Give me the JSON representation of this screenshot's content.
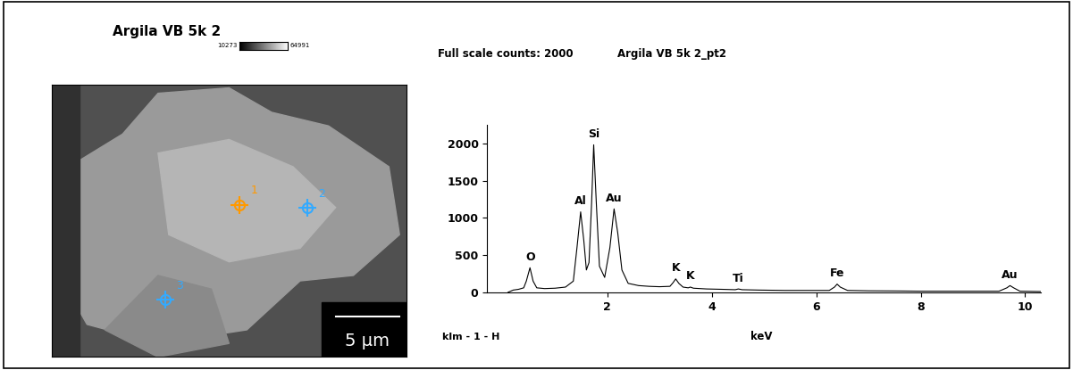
{
  "title": "Argila VB 5k 2",
  "image": {
    "colorbar": {
      "min": 10273,
      "max": 64991
    },
    "scale_bar": "5 µm",
    "markers": [
      {
        "label": "1",
        "color": "#ff9900"
      },
      {
        "label": "2",
        "color": "#33aaff"
      },
      {
        "label": "3",
        "color": "#33aaff"
      }
    ]
  },
  "chart_data": {
    "type": "line",
    "title": "Argila VB 5k 2_pt2",
    "subtitle": "Full scale counts: 2000",
    "annotation": "klm - 1 - H",
    "x_label": "keV",
    "color": "#000000",
    "x": [
      0.1,
      0.2,
      0.3,
      0.4,
      0.45,
      0.52,
      0.58,
      0.65,
      0.8,
      1.0,
      1.2,
      1.35,
      1.42,
      1.49,
      1.55,
      1.6,
      1.65,
      1.7,
      1.74,
      1.79,
      1.85,
      1.95,
      2.05,
      2.13,
      2.2,
      2.28,
      2.4,
      2.6,
      2.8,
      3.0,
      3.2,
      3.26,
      3.31,
      3.37,
      3.45,
      3.55,
      3.59,
      3.65,
      3.9,
      4.2,
      4.45,
      4.51,
      4.58,
      4.9,
      5.4,
      5.9,
      6.25,
      6.35,
      6.4,
      6.46,
      6.6,
      7.0,
      7.5,
      8.0,
      8.5,
      9.0,
      9.5,
      9.65,
      9.71,
      9.78,
      9.9,
      10.3
    ],
    "values": [
      0,
      30,
      40,
      60,
      150,
      330,
      150,
      60,
      50,
      55,
      70,
      150,
      600,
      1080,
      700,
      300,
      400,
      1200,
      1980,
      1200,
      350,
      200,
      600,
      1120,
      800,
      300,
      120,
      90,
      80,
      75,
      80,
      130,
      180,
      120,
      70,
      60,
      70,
      55,
      45,
      40,
      35,
      45,
      35,
      30,
      25,
      25,
      25,
      70,
      110,
      70,
      25,
      20,
      18,
      15,
      15,
      15,
      15,
      60,
      90,
      60,
      15,
      10
    ],
    "peaks": [
      {
        "label": "O",
        "x": 0.52,
        "y": 330
      },
      {
        "label": "Al",
        "x": 1.49,
        "y": 1080
      },
      {
        "label": "Si",
        "x": 1.74,
        "y": 1980
      },
      {
        "label": "Au",
        "x": 2.13,
        "y": 1120
      },
      {
        "label": "K",
        "x": 3.31,
        "y": 180
      },
      {
        "label": "K",
        "x": 3.59,
        "y": 70
      },
      {
        "label": "Ti",
        "x": 4.51,
        "y": 45
      },
      {
        "label": "Fe",
        "x": 6.4,
        "y": 110
      },
      {
        "label": "Au",
        "x": 9.71,
        "y": 90
      }
    ],
    "xlim": [
      -0.3,
      10.3
    ],
    "ylim": [
      0,
      2250
    ],
    "xticks": [
      2,
      4,
      6,
      8,
      10
    ],
    "yticks": [
      0,
      500,
      1000,
      1500,
      2000
    ]
  }
}
